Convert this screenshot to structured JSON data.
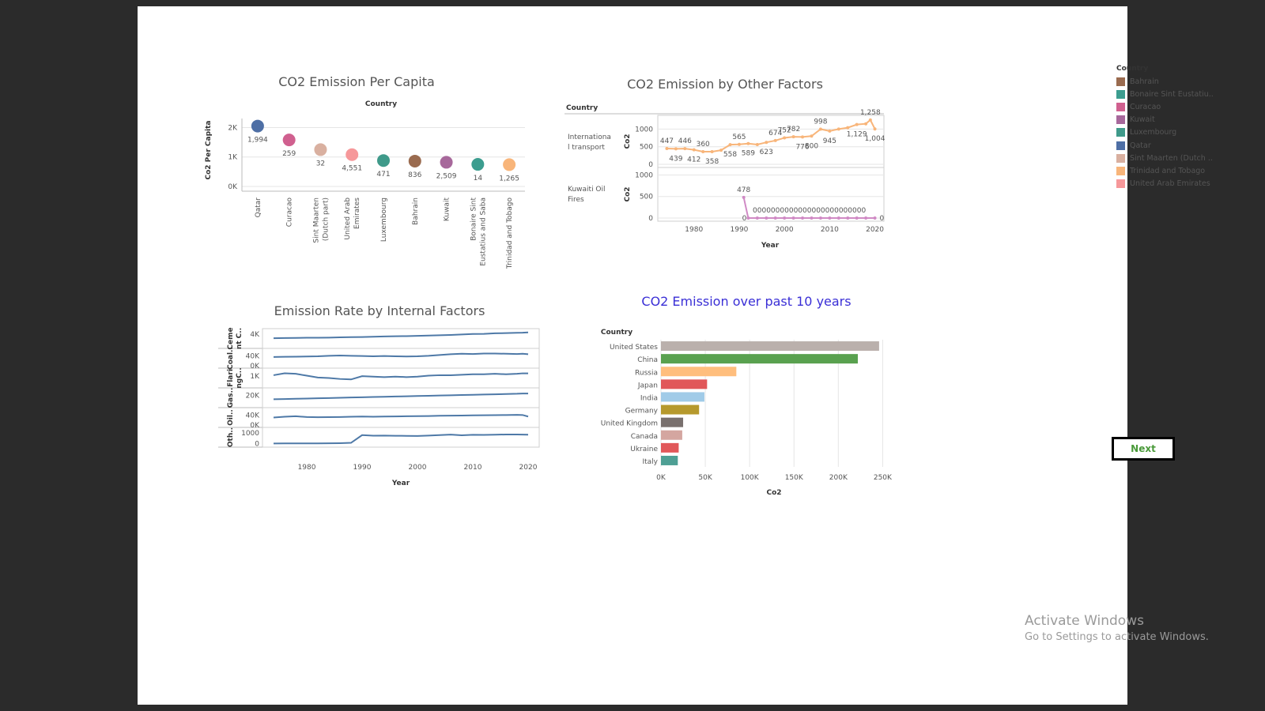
{
  "titles": {
    "per_capita": "CO2 Emission Per Capita",
    "other": "CO2 Emission by Other Factors",
    "internal": "Emission Rate by Internal Factors",
    "past10": "CO2 Emission over past 10 years"
  },
  "legend": {
    "title": "Country",
    "items": [
      {
        "label": "Bahrain",
        "color": "#9a6b4f"
      },
      {
        "label": "Bonaire Sint Eustatiu..",
        "color": "#3c9d8f"
      },
      {
        "label": "Curacao",
        "color": "#d0608f"
      },
      {
        "label": "Kuwait",
        "color": "#a7689b"
      },
      {
        "label": "Luxembourg",
        "color": "#3f9a8a"
      },
      {
        "label": "Qatar",
        "color": "#4e6fa5"
      },
      {
        "label": "Sint Maarten (Dutch ..",
        "color": "#d9b0a0"
      },
      {
        "label": "Trinidad and Tobago",
        "color": "#f8b57a"
      },
      {
        "label": "United Arab Emirates",
        "color": "#f6989a"
      }
    ]
  },
  "next_label": "Next",
  "watermark": {
    "line1": "Activate Windows",
    "line2": "Go to Settings to activate Windows."
  },
  "chart_data": [
    {
      "id": "per_capita",
      "type": "scatter",
      "title": "CO2 Emission Per Capita",
      "header": "Country",
      "ylabel": "Co2 Per Capita",
      "ylim": [
        0,
        2200
      ],
      "yticks": [
        "0K",
        "1K",
        "2K"
      ],
      "ytick_values": [
        0,
        1000,
        2000
      ],
      "categories": [
        "Qatar",
        "Curacao",
        "Sint Maarten (Dutch part)",
        "United Arab Emirates",
        "Luxembourg",
        "Bahrain",
        "Kuwait",
        "Bonaire Sint Eustatius and Saba",
        "Trinidad and Tobago"
      ],
      "cat_lines": [
        [
          "Qatar"
        ],
        [
          "Curacao"
        ],
        [
          "Sint Maarten",
          "(Dutch part)"
        ],
        [
          "United Arab",
          "Emirates"
        ],
        [
          "Luxembourg"
        ],
        [
          "Bahrain"
        ],
        [
          "Kuwait"
        ],
        [
          "Bonaire Sint",
          "Eustatius and Saba"
        ],
        [
          "Trinidad and Tobago"
        ]
      ],
      "values": [
        2050,
        1580,
        1250,
        1080,
        880,
        860,
        820,
        750,
        740
      ],
      "labels": [
        "1,994",
        "259",
        "32",
        "4,551",
        "471",
        "836",
        "2,509",
        "14",
        "1,265"
      ],
      "colors": [
        "#4e6fa5",
        "#d0608f",
        "#d9b0a0",
        "#f6989a",
        "#3f9a8a",
        "#9a6b4f",
        "#a7689b",
        "#3c9d8f",
        "#f8b57a"
      ]
    },
    {
      "id": "other",
      "type": "line",
      "title": "CO2 Emission by Other Factors",
      "header": "Country",
      "xlabel": "Year",
      "xlim": [
        1972,
        2022
      ],
      "xticks": [
        1980,
        1990,
        2000,
        2010,
        2020
      ],
      "ylabel": "Co2",
      "panels": [
        {
          "row_label": [
            "Internationa",
            "l transport"
          ],
          "ylim": [
            0,
            1300
          ],
          "yticks": [
            0,
            500,
            1000
          ],
          "color": "#f8b57a",
          "points": [
            [
              1974,
              447
            ],
            [
              1976,
              439
            ],
            [
              1978,
              446
            ],
            [
              1980,
              412
            ],
            [
              1982,
              360
            ],
            [
              1984,
              358
            ],
            [
              1986,
              400
            ],
            [
              1988,
              558
            ],
            [
              1990,
              565
            ],
            [
              1992,
              589
            ],
            [
              1994,
              560
            ],
            [
              1996,
              623
            ],
            [
              1998,
              674
            ],
            [
              2000,
              752
            ],
            [
              2002,
              782
            ],
            [
              2004,
              776
            ],
            [
              2006,
              800
            ],
            [
              2008,
              998
            ],
            [
              2010,
              945
            ],
            [
              2012,
              1000
            ],
            [
              2014,
              1040
            ],
            [
              2016,
              1129
            ],
            [
              2018,
              1150
            ],
            [
              2019,
              1258
            ],
            [
              2020,
              1004
            ]
          ],
          "labels": [
            {
              "x": 1974,
              "t": "447",
              "pos": "above"
            },
            {
              "x": 1976,
              "t": "439",
              "pos": "below"
            },
            {
              "x": 1978,
              "t": "446",
              "pos": "above"
            },
            {
              "x": 1980,
              "t": "412",
              "pos": "below"
            },
            {
              "x": 1982,
              "t": "360",
              "pos": "above"
            },
            {
              "x": 1984,
              "t": "358",
              "pos": "below"
            },
            {
              "x": 1990,
              "t": "565",
              "pos": "above"
            },
            {
              "x": 1988,
              "t": "558",
              "pos": "below"
            },
            {
              "x": 1992,
              "t": "589",
              "pos": "below"
            },
            {
              "x": 1996,
              "t": "623",
              "pos": "below"
            },
            {
              "x": 1998,
              "t": "674",
              "pos": "above"
            },
            {
              "x": 2000,
              "t": "752",
              "pos": "above"
            },
            {
              "x": 2002,
              "t": "782",
              "pos": "above"
            },
            {
              "x": 2004,
              "t": "776",
              "pos": "below"
            },
            {
              "x": 2006,
              "t": "800",
              "pos": "below"
            },
            {
              "x": 2008,
              "t": "998",
              "pos": "above"
            },
            {
              "x": 2010,
              "t": "945",
              "pos": "below"
            },
            {
              "x": 2016,
              "t": "1,129",
              "pos": "below"
            },
            {
              "x": 2019,
              "t": "1,258",
              "pos": "above"
            },
            {
              "x": 2020,
              "t": "1,004",
              "pos": "below"
            }
          ]
        },
        {
          "row_label": [
            "Kuwaiti Oil",
            "Fires"
          ],
          "ylim": [
            0,
            1100
          ],
          "yticks": [
            0,
            500,
            1000
          ],
          "color": "#d08ac5",
          "points": [
            [
              1991,
              478
            ],
            [
              1992,
              0
            ],
            [
              1994,
              0
            ],
            [
              1996,
              0
            ],
            [
              1998,
              0
            ],
            [
              2000,
              0
            ],
            [
              2002,
              0
            ],
            [
              2004,
              0
            ],
            [
              2006,
              0
            ],
            [
              2008,
              0
            ],
            [
              2010,
              0
            ],
            [
              2012,
              0
            ],
            [
              2014,
              0
            ],
            [
              2016,
              0
            ],
            [
              2018,
              0
            ],
            [
              2020,
              0
            ]
          ],
          "labels": [
            {
              "x": 1991,
              "t": "478",
              "pos": "above"
            },
            {
              "x": 1992,
              "t": "0",
              "pos": "left"
            },
            {
              "x": 2005.5,
              "t": "0000000000000000000000000",
              "pos": "above"
            },
            {
              "x": 2020,
              "t": "0",
              "pos": "right"
            }
          ]
        }
      ]
    },
    {
      "id": "internal",
      "type": "line",
      "title": "Emission Rate by Internal Factors",
      "xlabel": "Year",
      "xlim": [
        1972,
        2022
      ],
      "xticks": [
        1980,
        1990,
        2000,
        2010,
        2020
      ],
      "color": "#4e79a7",
      "panels": [
        {
          "row_label": [
            "Ceme",
            "nt C.."
          ],
          "ylim": [
            0,
            5000
          ],
          "yticks": [
            4000
          ],
          "ytick_labels": [
            "4K"
          ],
          "values": [
            2600,
            2650,
            2700,
            2750,
            2750,
            2800,
            2900,
            2950,
            3000,
            3100,
            3200,
            3250,
            3300,
            3400,
            3500,
            3600,
            3700,
            3850,
            4000,
            4050,
            4250,
            4300,
            4400,
            4450,
            4550
          ]
        },
        {
          "row_label": [
            "Coal.."
          ],
          "ylim": [
            0,
            60000
          ],
          "yticks": [
            0,
            40000
          ],
          "ytick_labels": [
            "0K",
            "40K"
          ],
          "values": [
            35000,
            36000,
            36500,
            37000,
            38000,
            40000,
            41000,
            40000,
            39000,
            38000,
            39000,
            38000,
            37000,
            38000,
            40000,
            43000,
            46000,
            48000,
            47000,
            49000,
            49000,
            48000,
            47000,
            48000,
            46000
          ]
        },
        {
          "row_label": [
            "Flari",
            "ngC.."
          ],
          "ylim": [
            0,
            1600
          ],
          "yticks": [
            1000
          ],
          "ytick_labels": [
            "1K"
          ],
          "values": [
            1100,
            1300,
            1250,
            1050,
            850,
            800,
            700,
            650,
            1000,
            950,
            900,
            950,
            900,
            950,
            1050,
            1100,
            1100,
            1150,
            1200,
            1200,
            1250,
            1200,
            1250,
            1300,
            1300
          ]
        },
        {
          "row_label": [
            "Gas.."
          ],
          "ylim": [
            0,
            30000
          ],
          "yticks": [
            20000
          ],
          "ytick_labels": [
            "20K"
          ],
          "values": [
            12000,
            12500,
            13000,
            13500,
            14000,
            14500,
            15000,
            15500,
            16000,
            16500,
            17000,
            17500,
            18000,
            18500,
            19000,
            19500,
            20000,
            20500,
            21000,
            21500,
            22000,
            22500,
            23000,
            23500,
            23500
          ]
        },
        {
          "row_label": [
            "Oil.."
          ],
          "ylim": [
            0,
            60000
          ],
          "yticks": [
            0,
            40000
          ],
          "ytick_labels": [
            "0K",
            "40K"
          ],
          "values": [
            30000,
            33000,
            35000,
            32000,
            31000,
            31500,
            32000,
            33000,
            34000,
            33000,
            34000,
            34500,
            35000,
            35500,
            36000,
            37000,
            37500,
            38000,
            38500,
            39000,
            39500,
            40000,
            40500,
            40000,
            34000
          ]
        },
        {
          "row_label": [
            "Oth.."
          ],
          "ylim": [
            -100,
            1300
          ],
          "yticks": [
            0,
            1000
          ],
          "ytick_labels": [
            "0",
            "1000"
          ],
          "values": [
            20,
            25,
            25,
            25,
            30,
            35,
            50,
            80,
            800,
            750,
            760,
            740,
            730,
            720,
            760,
            800,
            850,
            780,
            830,
            820,
            840,
            860,
            860,
            850,
            840
          ]
        }
      ],
      "years": [
        1974,
        1976,
        1978,
        1980,
        1982,
        1984,
        1986,
        1988,
        1990,
        1992,
        1994,
        1996,
        1998,
        2000,
        2002,
        2004,
        2006,
        2008,
        2010,
        2012,
        2014,
        2016,
        2018,
        2019,
        2020
      ]
    },
    {
      "id": "past10",
      "type": "bar",
      "title": "CO2 Emission over past 10 years",
      "header": "Country",
      "xlabel": "Co2",
      "xlim": [
        0,
        255000
      ],
      "xticks": [
        0,
        50000,
        100000,
        150000,
        200000,
        250000
      ],
      "xtick_labels": [
        "0K",
        "50K",
        "100K",
        "150K",
        "200K",
        "250K"
      ],
      "categories": [
        "United States",
        "China",
        "Russia",
        "Japan",
        "India",
        "Germany",
        "United Kingdom",
        "Canada",
        "Ukraine",
        "Italy"
      ],
      "values": [
        246000,
        222000,
        85000,
        52000,
        49000,
        43000,
        25000,
        24000,
        20000,
        19000
      ],
      "colors": [
        "#bab0ac",
        "#59a14f",
        "#ffbe7d",
        "#e15759",
        "#a0cbe8",
        "#b6992d",
        "#79706e",
        "#d4a6a0",
        "#e15759",
        "#4e9f94"
      ]
    }
  ]
}
